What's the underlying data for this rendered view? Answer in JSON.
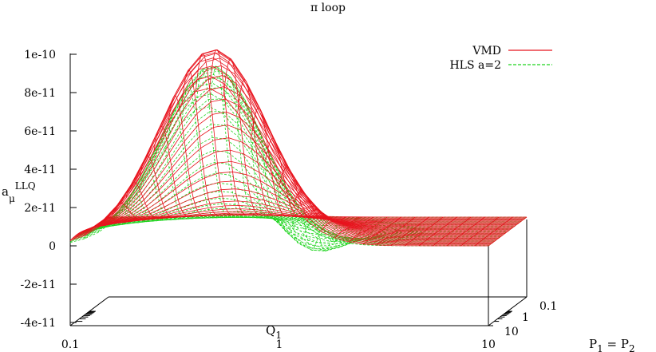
{
  "chart_data": {
    "type": "surface",
    "title": "π loop",
    "xlabel": "Q1",
    "ylabel": "P1 = P2",
    "zlabel": "aμLLQ",
    "x_scale": "log",
    "y_scale": "log",
    "xlim": [
      0.1,
      10
    ],
    "ylim": [
      0.1,
      10
    ],
    "zlim": [
      -4e-11,
      1e-10
    ],
    "x_ticks": [
      "0.1",
      "1",
      "10"
    ],
    "y_ticks": [
      "0.1",
      "1",
      "10"
    ],
    "z_ticks": [
      "-4e-11",
      "-2e-11",
      "0",
      "2e-11",
      "4e-11",
      "6e-11",
      "8e-11",
      "1e-10"
    ],
    "grid": false,
    "legend_position": "top-right",
    "colors": {
      "VMD": "#e8141e",
      "HLS a=2": "#1fd41f"
    },
    "series": [
      {
        "name": "VMD",
        "style": "solid",
        "peak": {
          "x": 0.45,
          "y": 0.22,
          "z": 1e-10
        },
        "trough_z": 0
      },
      {
        "name": "HLS a=2",
        "style": "dashed",
        "peak": {
          "x": 0.45,
          "y": 0.22,
          "z": 9.2e-11
        },
        "trough": {
          "x": 1.0,
          "y": 0.8,
          "z": -2.1e-11
        }
      }
    ]
  }
}
